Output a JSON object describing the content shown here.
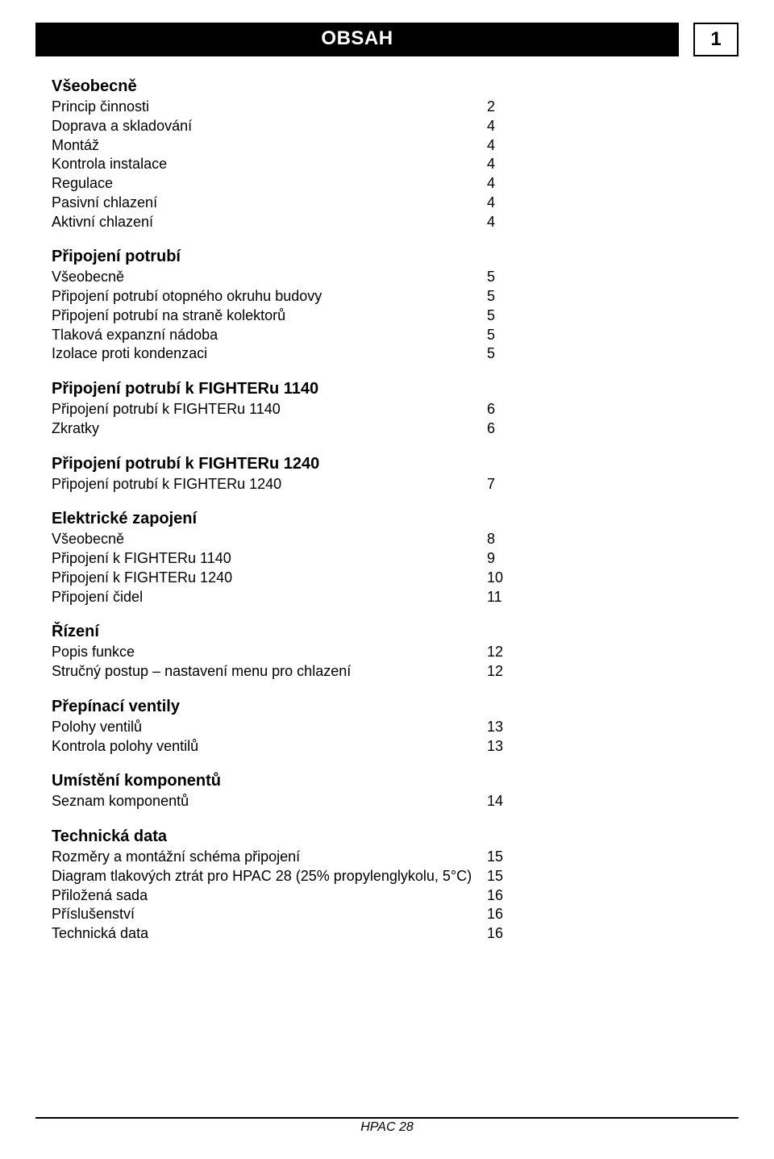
{
  "header": {
    "title": "OBSAH",
    "page_number": "1"
  },
  "sections": [
    {
      "title": "Všeobecně",
      "items": [
        {
          "label": "Princip činnosti",
          "page": "2"
        },
        {
          "label": "Doprava a skladování",
          "page": "4"
        },
        {
          "label": "Montáž",
          "page": "4"
        },
        {
          "label": "Kontrola instalace",
          "page": "4"
        },
        {
          "label": "Regulace",
          "page": "4"
        },
        {
          "label": "Pasivní chlazení",
          "page": "4"
        },
        {
          "label": "Aktivní chlazení",
          "page": "4"
        }
      ]
    },
    {
      "title": "Připojení potrubí",
      "items": [
        {
          "label": "Všeobecně",
          "page": "5"
        },
        {
          "label": "Připojení potrubí otopného okruhu budovy",
          "page": "5"
        },
        {
          "label": "Připojení potrubí na straně kolektorů",
          "page": "5"
        },
        {
          "label": "Tlaková expanzní nádoba",
          "page": "5"
        },
        {
          "label": "Izolace proti kondenzaci",
          "page": "5"
        }
      ]
    },
    {
      "title": "Připojení potrubí k FIGHTERu 1140",
      "items": [
        {
          "label": "Připojení potrubí k FIGHTERu 1140",
          "page": "6"
        },
        {
          "label": "Zkratky",
          "page": "6"
        }
      ]
    },
    {
      "title": "Připojení potrubí k FIGHTERu 1240",
      "items": [
        {
          "label": "Připojení potrubí k FIGHTERu 1240",
          "page": "7"
        }
      ]
    },
    {
      "title": "Elektrické zapojení",
      "items": [
        {
          "label": "Všeobecně",
          "page": "8"
        },
        {
          "label": "Připojení k FIGHTERu 1140",
          "page": "9"
        },
        {
          "label": "Připojení k FIGHTERu 1240",
          "page": "10"
        },
        {
          "label": "Připojení čidel",
          "page": "11"
        }
      ]
    },
    {
      "title": "Řízení",
      "items": [
        {
          "label": "Popis funkce",
          "page": "12"
        },
        {
          "label": "Stručný postup – nastavení menu pro chlazení",
          "page": "12"
        }
      ]
    },
    {
      "title": "Přepínací ventily",
      "items": [
        {
          "label": "Polohy ventilů",
          "page": "13"
        },
        {
          "label": "Kontrola polohy ventilů",
          "page": "13"
        }
      ]
    },
    {
      "title": "Umístění komponentů",
      "items": [
        {
          "label": "Seznam komponentů",
          "page": "14"
        }
      ]
    },
    {
      "title": "Technická data",
      "items": [
        {
          "label": "Rozměry a montážní schéma připojení",
          "page": "15"
        },
        {
          "label": "Diagram tlakových ztrát pro HPAC 28 (25% propylenglykolu, 5°C)",
          "page": "15"
        },
        {
          "label": "Přiložená sada",
          "page": "16"
        },
        {
          "label": "Příslušenství",
          "page": "16"
        },
        {
          "label": "Technická data",
          "page": "16"
        }
      ]
    }
  ],
  "footer": {
    "label": "HPAC 28"
  },
  "styles": {
    "header_bg": "#000000",
    "header_fg": "#ffffff",
    "body_bg": "#ffffff",
    "text_color": "#000000",
    "title_fontsize_pt": 20,
    "item_fontsize_pt": 18,
    "header_fontsize_pt": 24
  }
}
